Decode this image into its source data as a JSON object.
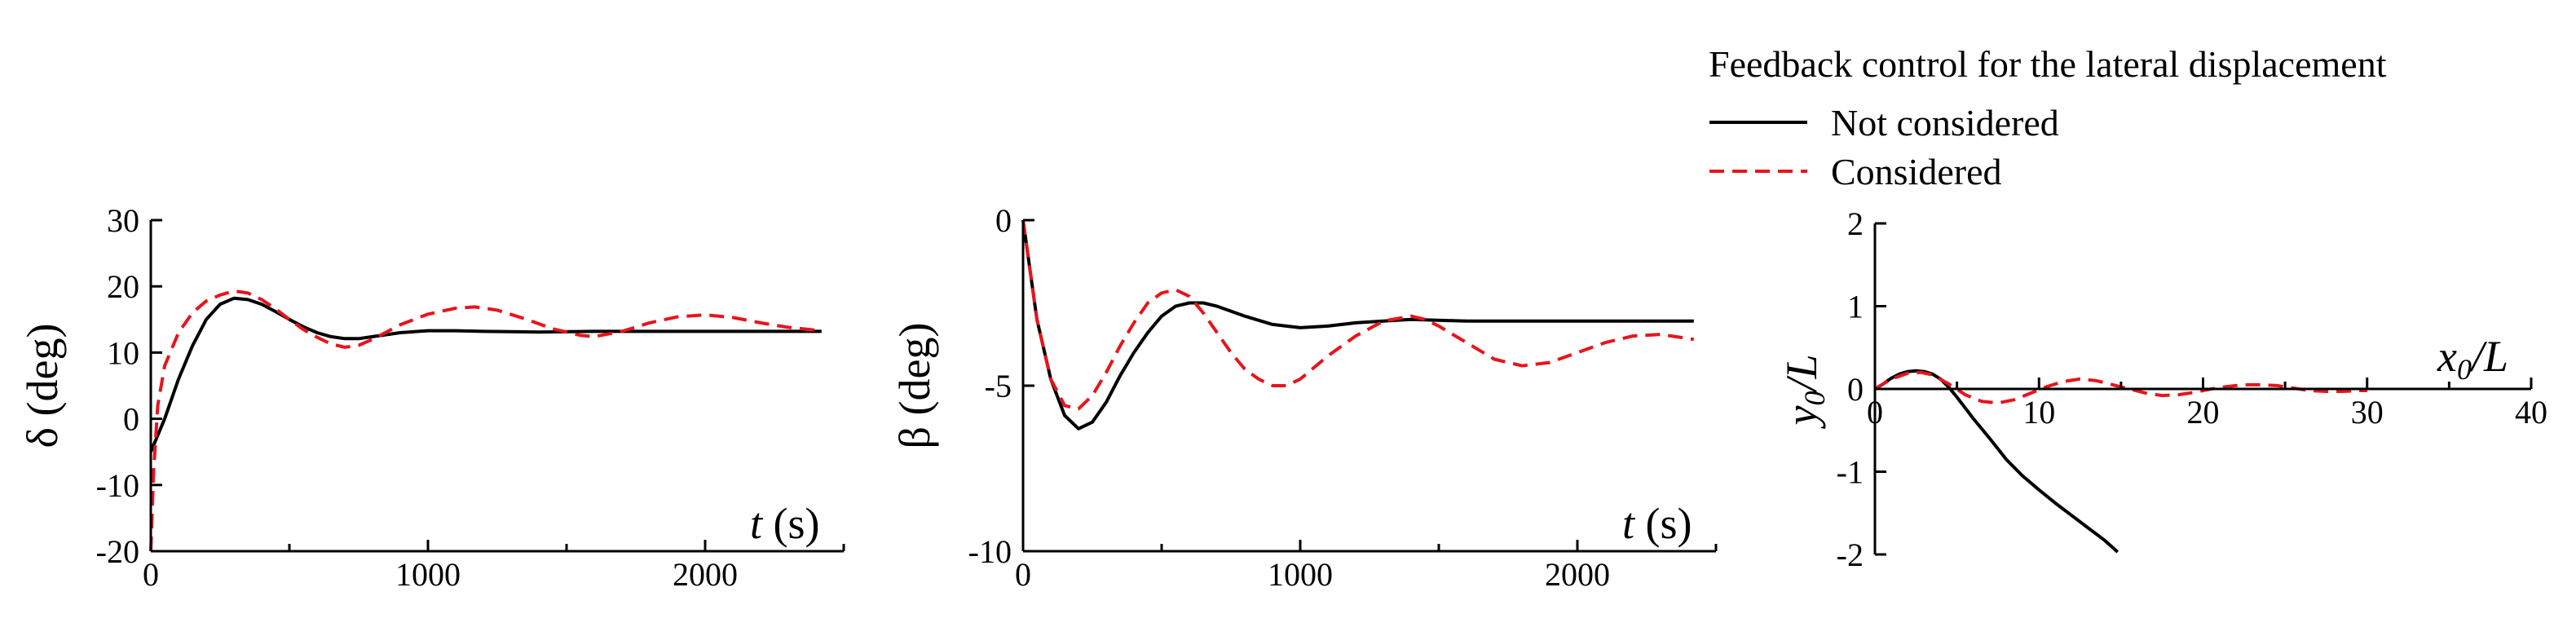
{
  "legend": {
    "title": "Feedback control for the lateral displacement",
    "entries": [
      {
        "label": "Not considered",
        "color": "#000000",
        "dash": "solid"
      },
      {
        "label": "Considered",
        "color": "#e8141c",
        "dash": "dashed"
      }
    ],
    "placement": "top-right"
  },
  "chart_data": [
    {
      "type": "line",
      "ylabel": "δ (deg)",
      "xlabel_var": "t",
      "xlabel_unit": "(s)",
      "xlim": [
        0,
        2500
      ],
      "ylim": [
        -20,
        30
      ],
      "xticks": [
        0,
        1000,
        2000
      ],
      "yticks": [
        -20,
        -10,
        0,
        10,
        20,
        30
      ],
      "grid": false,
      "zero_line": false,
      "series": [
        {
          "name": "Not considered",
          "color": "#000000",
          "dash": "solid",
          "points": [
            [
              0,
              -5
            ],
            [
              50,
              0
            ],
            [
              100,
              6
            ],
            [
              150,
              11
            ],
            [
              200,
              15
            ],
            [
              250,
              17.3
            ],
            [
              300,
              18.2
            ],
            [
              350,
              18
            ],
            [
              400,
              17.3
            ],
            [
              450,
              16.2
            ],
            [
              500,
              15
            ],
            [
              550,
              13.9
            ],
            [
              600,
              13
            ],
            [
              650,
              12.4
            ],
            [
              700,
              12.1
            ],
            [
              750,
              12.1
            ],
            [
              800,
              12.4
            ],
            [
              900,
              13
            ],
            [
              1000,
              13.3
            ],
            [
              1100,
              13.3
            ],
            [
              1200,
              13.2
            ],
            [
              1400,
              13.1
            ],
            [
              1600,
              13.2
            ],
            [
              1800,
              13.2
            ],
            [
              2000,
              13.2
            ],
            [
              2200,
              13.2
            ],
            [
              2420,
              13.2
            ]
          ]
        },
        {
          "name": "Considered",
          "color": "#e8141c",
          "dash": "dashed",
          "points": [
            [
              0,
              -20
            ],
            [
              10,
              -8
            ],
            [
              25,
              2
            ],
            [
              50,
              8
            ],
            [
              100,
              13
            ],
            [
              150,
              16
            ],
            [
              200,
              17.8
            ],
            [
              250,
              18.7
            ],
            [
              300,
              19.3
            ],
            [
              350,
              19
            ],
            [
              400,
              18
            ],
            [
              450,
              16.6
            ],
            [
              500,
              15
            ],
            [
              550,
              13.5
            ],
            [
              600,
              12.3
            ],
            [
              650,
              11.3
            ],
            [
              700,
              10.8
            ],
            [
              750,
              11.1
            ],
            [
              800,
              12
            ],
            [
              900,
              14.2
            ],
            [
              1000,
              15.8
            ],
            [
              1100,
              16.7
            ],
            [
              1170,
              16.9
            ],
            [
              1250,
              16.4
            ],
            [
              1350,
              15.1
            ],
            [
              1450,
              13.6
            ],
            [
              1550,
              12.6
            ],
            [
              1600,
              12.4
            ],
            [
              1700,
              13.2
            ],
            [
              1800,
              14.5
            ],
            [
              1900,
              15.4
            ],
            [
              2000,
              15.7
            ],
            [
              2100,
              15.3
            ],
            [
              2200,
              14.5
            ],
            [
              2300,
              13.8
            ],
            [
              2420,
              13.3
            ]
          ]
        }
      ]
    },
    {
      "type": "line",
      "ylabel": "β (deg)",
      "xlabel_var": "t",
      "xlabel_unit": "(s)",
      "xlim": [
        0,
        2500
      ],
      "ylim": [
        -10,
        0
      ],
      "xticks": [
        0,
        1000,
        2000
      ],
      "yticks": [
        -10,
        -5,
        0
      ],
      "grid": false,
      "zero_line": false,
      "series": [
        {
          "name": "Not considered",
          "color": "#000000",
          "dash": "solid",
          "points": [
            [
              0,
              0
            ],
            [
              25,
              -1.5
            ],
            [
              50,
              -3
            ],
            [
              100,
              -4.8
            ],
            [
              150,
              -5.9
            ],
            [
              200,
              -6.3
            ],
            [
              250,
              -6.1
            ],
            [
              300,
              -5.5
            ],
            [
              350,
              -4.7
            ],
            [
              400,
              -4
            ],
            [
              450,
              -3.4
            ],
            [
              500,
              -2.9
            ],
            [
              550,
              -2.6
            ],
            [
              600,
              -2.5
            ],
            [
              650,
              -2.5
            ],
            [
              700,
              -2.6
            ],
            [
              800,
              -2.9
            ],
            [
              900,
              -3.15
            ],
            [
              1000,
              -3.25
            ],
            [
              1100,
              -3.2
            ],
            [
              1200,
              -3.1
            ],
            [
              1300,
              -3.05
            ],
            [
              1400,
              -3.0
            ],
            [
              1600,
              -3.05
            ],
            [
              1800,
              -3.05
            ],
            [
              2000,
              -3.05
            ],
            [
              2200,
              -3.05
            ],
            [
              2420,
              -3.05
            ]
          ]
        },
        {
          "name": "Considered",
          "color": "#e8141c",
          "dash": "dashed",
          "points": [
            [
              0,
              0
            ],
            [
              25,
              -1.5
            ],
            [
              50,
              -3
            ],
            [
              100,
              -4.8
            ],
            [
              150,
              -5.6
            ],
            [
              200,
              -5.7
            ],
            [
              250,
              -5.3
            ],
            [
              300,
              -4.6
            ],
            [
              350,
              -3.8
            ],
            [
              400,
              -3.1
            ],
            [
              450,
              -2.5
            ],
            [
              500,
              -2.2
            ],
            [
              550,
              -2.1
            ],
            [
              600,
              -2.3
            ],
            [
              650,
              -2.8
            ],
            [
              700,
              -3.4
            ],
            [
              750,
              -4
            ],
            [
              800,
              -4.5
            ],
            [
              850,
              -4.8
            ],
            [
              900,
              -5
            ],
            [
              950,
              -5
            ],
            [
              1000,
              -4.8
            ],
            [
              1100,
              -4.1
            ],
            [
              1200,
              -3.5
            ],
            [
              1300,
              -3.05
            ],
            [
              1400,
              -2.9
            ],
            [
              1450,
              -3
            ],
            [
              1500,
              -3.2
            ],
            [
              1600,
              -3.7
            ],
            [
              1700,
              -4.2
            ],
            [
              1800,
              -4.4
            ],
            [
              1900,
              -4.3
            ],
            [
              2000,
              -4
            ],
            [
              2100,
              -3.7
            ],
            [
              2200,
              -3.5
            ],
            [
              2300,
              -3.45
            ],
            [
              2420,
              -3.6
            ]
          ]
        }
      ]
    },
    {
      "type": "line",
      "ylabel_var": "y",
      "ylabel_sub": "0",
      "ylabel_den": "/L",
      "xlabel_var": "x",
      "xlabel_sub": "0",
      "xlabel_den": "/L",
      "xlim": [
        0,
        40
      ],
      "ylim": [
        -2,
        2
      ],
      "xticks": [
        0,
        10,
        20,
        30,
        40
      ],
      "yticks": [
        -2,
        -1,
        0,
        1,
        2
      ],
      "grid": false,
      "zero_line": true,
      "series": [
        {
          "name": "Not considered",
          "color": "#000000",
          "dash": "solid",
          "points": [
            [
              0,
              0
            ],
            [
              0.5,
              0.06
            ],
            [
              1,
              0.13
            ],
            [
              1.5,
              0.18
            ],
            [
              2,
              0.21
            ],
            [
              2.5,
              0.22
            ],
            [
              3,
              0.21
            ],
            [
              3.5,
              0.18
            ],
            [
              4,
              0.12
            ],
            [
              4.5,
              0.02
            ],
            [
              5,
              -0.1
            ],
            [
              5.5,
              -0.23
            ],
            [
              6,
              -0.36
            ],
            [
              7,
              -0.6
            ],
            [
              8,
              -0.85
            ],
            [
              9,
              -1.05
            ],
            [
              10,
              -1.22
            ],
            [
              11,
              -1.38
            ],
            [
              12,
              -1.53
            ],
            [
              13,
              -1.68
            ],
            [
              14,
              -1.83
            ],
            [
              14.8,
              -1.97
            ]
          ]
        },
        {
          "name": "Considered",
          "color": "#e8141c",
          "dash": "dashed",
          "points": [
            [
              0,
              0
            ],
            [
              1,
              0.12
            ],
            [
              2,
              0.19
            ],
            [
              2.8,
              0.2
            ],
            [
              3.5,
              0.17
            ],
            [
              4.5,
              0.06
            ],
            [
              5.5,
              -0.07
            ],
            [
              6.5,
              -0.15
            ],
            [
              7.5,
              -0.17
            ],
            [
              8.5,
              -0.13
            ],
            [
              9.5,
              -0.05
            ],
            [
              10.5,
              0.03
            ],
            [
              11.5,
              0.09
            ],
            [
              12.5,
              0.12
            ],
            [
              13.5,
              0.1
            ],
            [
              14.5,
              0.05
            ],
            [
              15.5,
              0
            ],
            [
              16.5,
              -0.05
            ],
            [
              17.5,
              -0.08
            ],
            [
              18.5,
              -0.07
            ],
            [
              19.5,
              -0.04
            ],
            [
              20.5,
              0
            ],
            [
              21.5,
              0.03
            ],
            [
              22.5,
              0.05
            ],
            [
              23.5,
              0.05
            ],
            [
              24.5,
              0.04
            ],
            [
              25.5,
              0.01
            ],
            [
              26.5,
              -0.02
            ],
            [
              27.5,
              -0.03
            ],
            [
              28.5,
              -0.03
            ],
            [
              29.5,
              -0.02
            ],
            [
              30,
              -0.02
            ]
          ]
        }
      ]
    }
  ]
}
